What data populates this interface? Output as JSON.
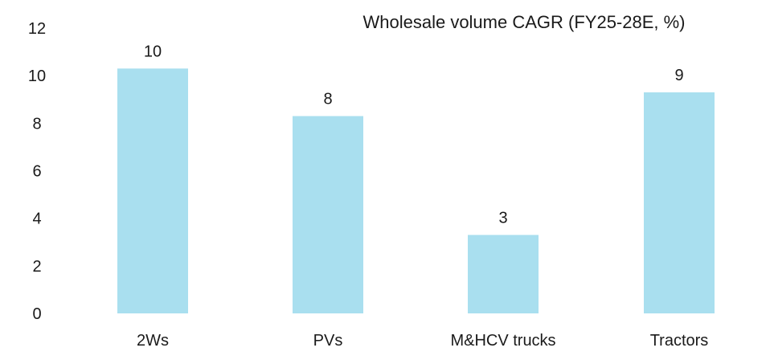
{
  "chart_data": {
    "type": "bar",
    "title": "Wholesale volume CAGR (FY25-28E, %)",
    "xlabel": "",
    "ylabel": "",
    "categories": [
      "2Ws",
      "PVs",
      "M&HCV trucks",
      "Tractors"
    ],
    "values": [
      10.3,
      8.3,
      3.3,
      9.3
    ],
    "data_labels": [
      "10",
      "8",
      "3",
      "9"
    ],
    "ylim": [
      0,
      12
    ],
    "yticks": [
      "0",
      "2",
      "4",
      "6",
      "8",
      "10",
      "12"
    ],
    "grid": false,
    "legend": "none",
    "colors": {
      "bar": "#a9dfef",
      "text": "#1a1a1a"
    }
  }
}
